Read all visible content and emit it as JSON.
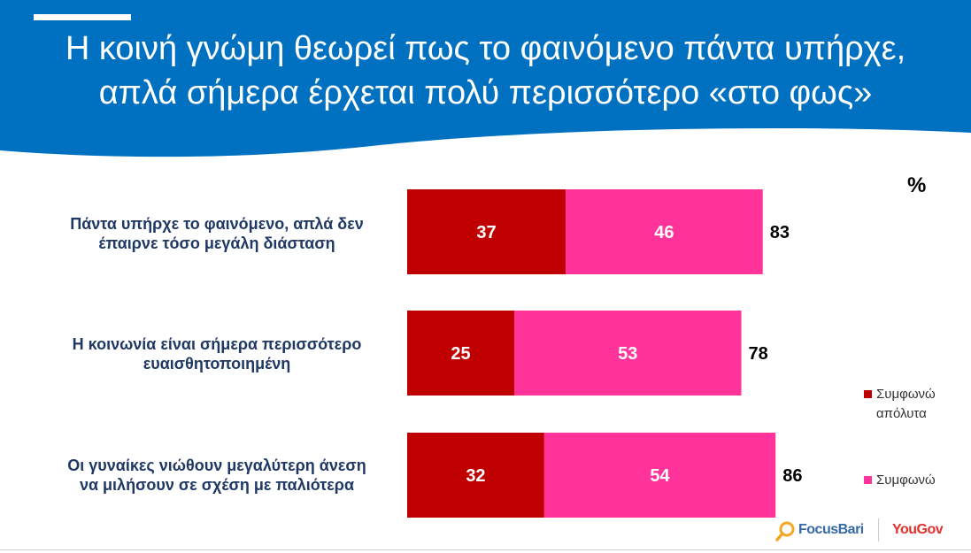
{
  "header": {
    "title_line1": "Η κοινή γνώμη θεωρεί πως το φαινόμενο πάντα υπήρχε,",
    "title_line2": "απλά σήμερα έρχεται πολύ περισσότερο «στο φως»",
    "background_color": "#0070c0"
  },
  "percent_symbol": "%",
  "chart_data": {
    "type": "bar",
    "orientation": "horizontal",
    "stacked": true,
    "categories": [
      [
        "Πάντα υπήρχε το φαινόμενο, απλά δεν",
        "έπαιρνε τόσο μεγάλη διάσταση"
      ],
      [
        "Η κοινωνία είναι σήμερα περισσότερο",
        "ευαισθητοποιημένη"
      ],
      [
        "Οι γυναίκες νιώθουν μεγαλύτερη άνεση",
        "να μιλήσουν σε σχέση με παλιότερα"
      ]
    ],
    "series": [
      {
        "name": "Συμφωνώ απόλυτα",
        "color": "#c00000",
        "values": [
          37,
          25,
          32
        ]
      },
      {
        "name": "Συμφωνώ",
        "color": "#ff3399",
        "values": [
          46,
          53,
          54
        ]
      }
    ],
    "totals": [
      83,
      78,
      86
    ],
    "unit": "%",
    "grid": false,
    "legend_position": "right"
  },
  "legend": {
    "item1_line1": "Συμφωνώ",
    "item1_line2": "απόλυτα",
    "item2": "Συμφωνώ"
  },
  "logos": {
    "focusbari": "FocusBari",
    "yougov": "YouGov"
  }
}
